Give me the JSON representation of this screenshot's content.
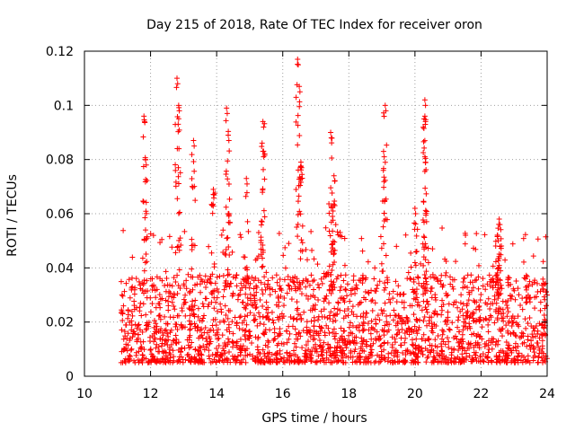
{
  "chart_data": {
    "type": "scatter",
    "title": "Day 215 of 2018, Rate Of TEC Index for receiver oron",
    "xlabel": "GPS time / hours",
    "ylabel": "ROTI / TECUs",
    "xlim": [
      10,
      24
    ],
    "ylim": [
      0,
      0.12
    ],
    "xticks": [
      10,
      12,
      14,
      16,
      18,
      20,
      22,
      24
    ],
    "xtick_labels": [
      "10",
      "12",
      "14",
      "16",
      "18",
      "20",
      "22",
      "24"
    ],
    "yticks": [
      0,
      0.02,
      0.04,
      0.06,
      0.08,
      0.1,
      0.12
    ],
    "ytick_labels": [
      "0",
      "0.02",
      "0.04",
      "0.06",
      "0.08",
      "0.1",
      "0.12"
    ],
    "grid": true,
    "marker": "+",
    "color": "#ff0000",
    "series": [
      {
        "name": "ROTI",
        "x_range": [
          11.1,
          24.0
        ],
        "typical_range": [
          0.005,
          0.03
        ],
        "peaks": [
          {
            "x": 11.8,
            "y": 0.096
          },
          {
            "x": 11.85,
            "y": 0.08
          },
          {
            "x": 12.8,
            "y": 0.11
          },
          {
            "x": 12.85,
            "y": 0.1
          },
          {
            "x": 13.3,
            "y": 0.087
          },
          {
            "x": 13.9,
            "y": 0.069
          },
          {
            "x": 14.3,
            "y": 0.099
          },
          {
            "x": 14.35,
            "y": 0.089
          },
          {
            "x": 14.9,
            "y": 0.073
          },
          {
            "x": 15.4,
            "y": 0.094
          },
          {
            "x": 15.4,
            "y": 0.083
          },
          {
            "x": 16.45,
            "y": 0.117
          },
          {
            "x": 16.5,
            "y": 0.107
          },
          {
            "x": 16.55,
            "y": 0.079
          },
          {
            "x": 17.45,
            "y": 0.09
          },
          {
            "x": 17.55,
            "y": 0.074
          },
          {
            "x": 17.5,
            "y": 0.063
          },
          {
            "x": 19.1,
            "y": 0.1
          },
          {
            "x": 19.05,
            "y": 0.083
          },
          {
            "x": 20.3,
            "y": 0.102
          },
          {
            "x": 20.3,
            "y": 0.096
          },
          {
            "x": 20.3,
            "y": 0.081
          },
          {
            "x": 20.0,
            "y": 0.062
          },
          {
            "x": 22.55,
            "y": 0.058
          },
          {
            "x": 22.5,
            "y": 0.052
          }
        ]
      }
    ]
  }
}
